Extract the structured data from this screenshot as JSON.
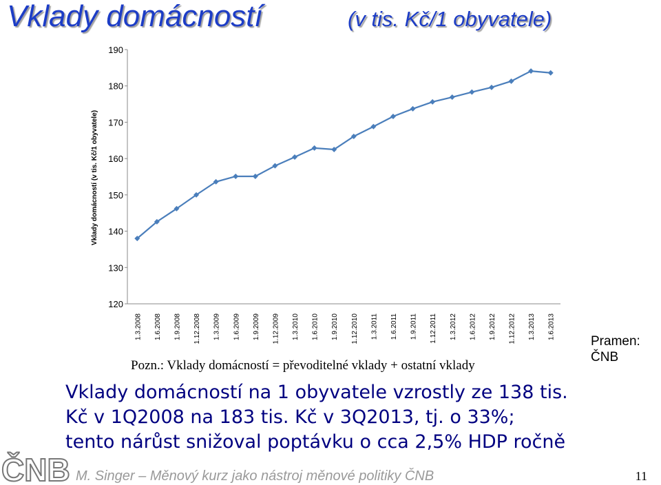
{
  "slide": {
    "title": "Vklady domácností",
    "subtitle": "(v tis. Kč/1 obyvatele)",
    "note": "Pozn.: Vklady domácností = převoditelné vklady + ostatní vklady",
    "source": "Pramen: ČNB",
    "body": [
      "Vklady domácností na 1 obyvatele vzrostly ze 138 tis.",
      "Kč v 1Q2008 na 183 tis. Kč v 3Q2013, tj. o 33%;",
      "tento nárůst snižoval poptávku o cca 2,5% HDP ročně"
    ],
    "logo": "ČNB",
    "footer": "M. Singer – Měnový kurz jako nástroj měnové politiky ČNB",
    "page_number": "11"
  },
  "chart_data": {
    "type": "line",
    "y_label": "Vklady domácností (v tis. Kč/1 obyvatele)",
    "categories": [
      "1.3.2008",
      "1.6.2008",
      "1.9.2008",
      "1.12.2008",
      "1.3.2009",
      "1.6.2009",
      "1.9.2009",
      "1.12.2009",
      "1.3.2010",
      "1.6.2010",
      "1.9.2010",
      "1.12.2010",
      "1.3.2011",
      "1.6.2011",
      "1.9.2011",
      "1.12.2011",
      "1.3.2012",
      "1.6.2012",
      "1.9.2012",
      "1.12.2012",
      "1.3.2013",
      "1.6.2013"
    ],
    "values": [
      138.0,
      142.6,
      146.2,
      150.0,
      153.6,
      155.1,
      155.1,
      158.0,
      160.4,
      162.9,
      162.5,
      166.1,
      168.8,
      171.6,
      173.7,
      175.6,
      176.9,
      178.3,
      179.6,
      181.3,
      184.1,
      183.6
    ],
    "color": "#4a7ebb",
    "ylim": [
      120,
      190
    ],
    "yticks": [
      120,
      130,
      140,
      150,
      160,
      170,
      180,
      190
    ]
  }
}
